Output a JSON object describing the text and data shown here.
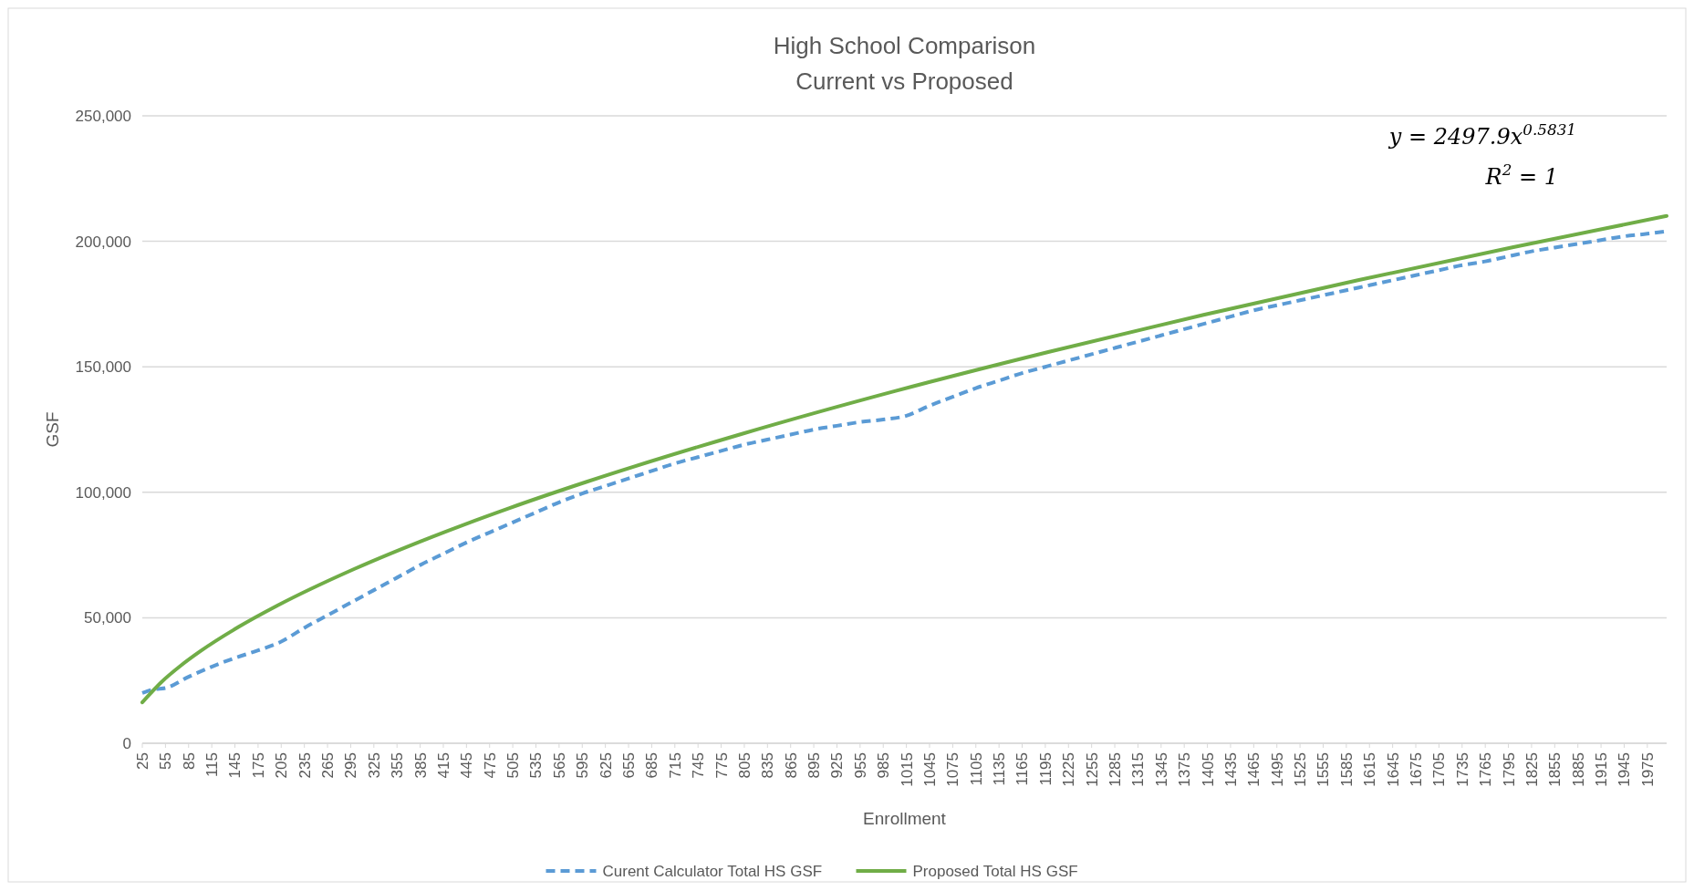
{
  "chart_data": {
    "type": "line",
    "title": "High School Comparison",
    "subtitle": "Current vs Proposed",
    "xlabel": "Enrollment",
    "ylabel": "GSF",
    "annotations": [
      "y = 2497.9x$^{0.5831}$",
      "R$^{2}$ = 1"
    ],
    "xlim": [
      25,
      2000
    ],
    "xticks": [
      25,
      55,
      85,
      115,
      145,
      175,
      205,
      235,
      265,
      295,
      325,
      355,
      385,
      415,
      445,
      475,
      505,
      535,
      565,
      595,
      625,
      655,
      685,
      715,
      745,
      775,
      805,
      835,
      865,
      895,
      925,
      955,
      985,
      1015,
      1045,
      1075,
      1105,
      1135,
      1165,
      1195,
      1225,
      1255,
      1285,
      1315,
      1345,
      1375,
      1405,
      1435,
      1465,
      1495,
      1525,
      1555,
      1585,
      1615,
      1645,
      1675,
      1705,
      1735,
      1765,
      1795,
      1825,
      1855,
      1885,
      1915,
      1945,
      1975
    ],
    "ylim": [
      0,
      250000
    ],
    "yticks": [
      {
        "value": 0,
        "label": "0"
      },
      {
        "value": 50000,
        "label": "50,000"
      },
      {
        "value": 100000,
        "label": "100,000"
      },
      {
        "value": 150000,
        "label": "150,000"
      },
      {
        "value": 200000,
        "label": "200,000"
      },
      {
        "value": 250000,
        "label": "250,000"
      }
    ],
    "grid": "y",
    "legend": "bottom",
    "series": [
      {
        "name": "Curent Calculator Total HS GSF",
        "color": "#5b9bd5",
        "line_style": "dashed",
        "x": [
          25,
          40,
          55,
          85,
          115,
          145,
          175,
          205,
          235,
          265,
          295,
          325,
          355,
          385,
          415,
          445,
          475,
          505,
          535,
          565,
          595,
          625,
          655,
          685,
          715,
          745,
          775,
          805,
          835,
          865,
          895,
          925,
          955,
          985,
          1015,
          1045,
          1075,
          1105,
          1135,
          1165,
          1195,
          1225,
          1255,
          1285,
          1315,
          1345,
          1375,
          1405,
          1435,
          1465,
          1495,
          1525,
          1555,
          1585,
          1615,
          1645,
          1675,
          1705,
          1735,
          1765,
          1795,
          1825,
          1855,
          1885,
          1915,
          1945,
          1975,
          2000
        ],
        "values": [
          20000,
          21500,
          22000,
          26500,
          30500,
          34000,
          37000,
          40500,
          46000,
          51000,
          56000,
          61000,
          66000,
          71000,
          75500,
          80000,
          84000,
          88000,
          92000,
          96000,
          99500,
          102500,
          105500,
          108500,
          111500,
          114000,
          116500,
          119000,
          121000,
          123000,
          125000,
          126500,
          128000,
          129000,
          130500,
          134500,
          138000,
          141500,
          144500,
          147500,
          150000,
          152500,
          155000,
          157500,
          160000,
          162500,
          165000,
          167500,
          170000,
          172500,
          174500,
          176500,
          178500,
          180500,
          182500,
          184500,
          186500,
          188500,
          190500,
          192000,
          194000,
          196000,
          197500,
          199000,
          200500,
          202000,
          203000,
          204000
        ]
      },
      {
        "name": "Proposed Total HS GSF",
        "color": "#70ad47",
        "line_style": "solid",
        "x": [
          25,
          50,
          75,
          100,
          150,
          200,
          300,
          400,
          500,
          600,
          800,
          1000,
          1200,
          1400,
          1600,
          1800,
          2000
        ],
        "values": [
          16300,
          24450,
          30970,
          36630,
          46390,
          54860,
          69490,
          82190,
          93620,
          104100,
          123100,
          140300,
          156000,
          170700,
          184500,
          197600,
          210100
        ]
      }
    ]
  }
}
